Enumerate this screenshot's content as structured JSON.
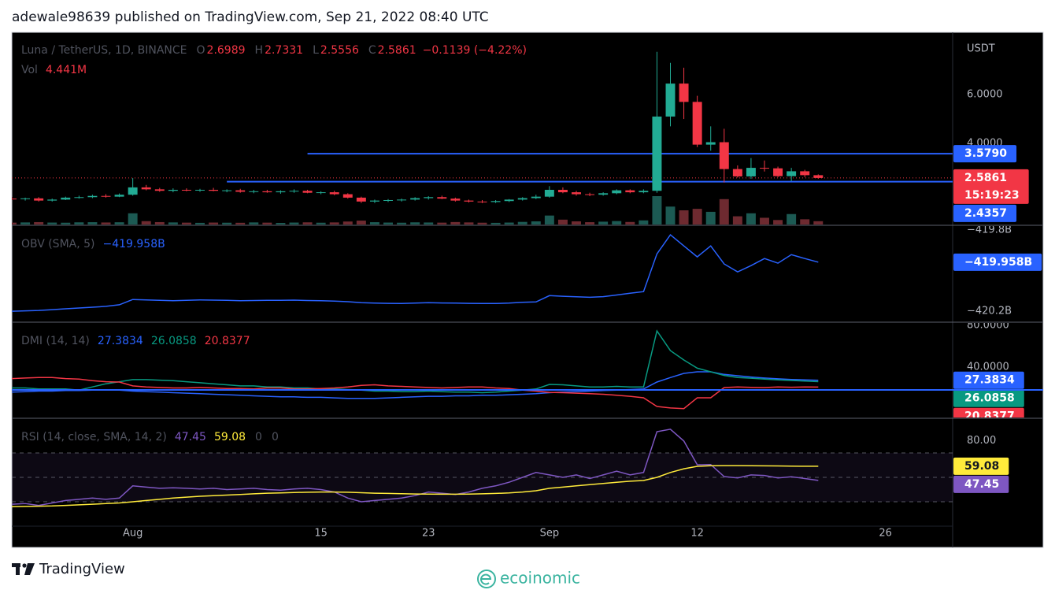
{
  "header": {
    "published": "adewale98639 published on TradingView.com, Sep 21, 2022 08:40 UTC"
  },
  "chart_data": [
    {
      "type": "candlestick",
      "title": "Luna / TetherUS, 1D, BINANCE",
      "ohlc_letters": [
        "O",
        "H",
        "L",
        "C"
      ],
      "change_text": "−0.1139 (−4.22%)",
      "axis_unit": "USDT",
      "countdown": "15:19:23",
      "x": [
        "2022-07-23",
        "2022-07-24",
        "2022-07-25",
        "2022-07-26",
        "2022-07-27",
        "2022-07-28",
        "2022-07-29",
        "2022-07-30",
        "2022-07-31",
        "2022-08-01",
        "2022-08-02",
        "2022-08-03",
        "2022-08-04",
        "2022-08-05",
        "2022-08-06",
        "2022-08-07",
        "2022-08-08",
        "2022-08-09",
        "2022-08-10",
        "2022-08-11",
        "2022-08-12",
        "2022-08-13",
        "2022-08-14",
        "2022-08-15",
        "2022-08-16",
        "2022-08-17",
        "2022-08-18",
        "2022-08-19",
        "2022-08-20",
        "2022-08-21",
        "2022-08-22",
        "2022-08-23",
        "2022-08-24",
        "2022-08-25",
        "2022-08-26",
        "2022-08-27",
        "2022-08-28",
        "2022-08-29",
        "2022-08-30",
        "2022-08-31",
        "2022-09-01",
        "2022-09-02",
        "2022-09-03",
        "2022-09-04",
        "2022-09-05",
        "2022-09-06",
        "2022-09-07",
        "2022-09-08",
        "2022-09-09",
        "2022-09-10",
        "2022-09-11",
        "2022-09-12",
        "2022-09-13",
        "2022-09-14",
        "2022-09-15",
        "2022-09-16",
        "2022-09-17",
        "2022-09-18",
        "2022-09-19",
        "2022-09-20",
        "2022-09-21"
      ],
      "open": [
        1.74,
        1.72,
        1.75,
        1.66,
        1.7,
        1.78,
        1.8,
        1.85,
        1.82,
        1.9,
        2.2,
        2.12,
        2.06,
        2.1,
        2.08,
        2.1,
        2.06,
        2.08,
        2.02,
        2.04,
        2.0,
        2.04,
        2.06,
        1.98,
        2.0,
        1.92,
        1.78,
        1.62,
        1.66,
        1.68,
        1.7,
        1.76,
        1.8,
        1.74,
        1.66,
        1.62,
        1.6,
        1.64,
        1.7,
        1.76,
        1.82,
        2.1,
        2.0,
        1.92,
        1.9,
        1.96,
        2.08,
        2.0,
        2.06,
        5.1,
        6.45,
        5.7,
        3.95,
        4.05,
        2.95,
        2.65,
        3.0,
        2.98,
        2.66,
        2.86,
        2.6989
      ],
      "high": [
        1.8,
        1.78,
        1.8,
        1.74,
        1.82,
        1.86,
        1.9,
        1.92,
        1.95,
        2.58,
        2.3,
        2.18,
        2.16,
        2.16,
        2.14,
        2.18,
        2.12,
        2.14,
        2.1,
        2.1,
        2.08,
        2.12,
        2.1,
        2.04,
        2.06,
        1.96,
        1.82,
        1.7,
        1.72,
        1.74,
        1.8,
        1.84,
        1.86,
        1.78,
        1.7,
        1.68,
        1.68,
        1.72,
        1.8,
        1.9,
        2.25,
        2.2,
        2.06,
        1.98,
        2.0,
        2.12,
        2.12,
        2.12,
        7.75,
        7.3,
        7.1,
        5.95,
        4.7,
        4.6,
        3.1,
        3.4,
        3.3,
        3.05,
        3.0,
        2.92,
        2.7331
      ],
      "low": [
        1.68,
        1.66,
        1.62,
        1.62,
        1.68,
        1.74,
        1.76,
        1.78,
        1.8,
        1.86,
        2.08,
        2.02,
        2.0,
        2.04,
        2.02,
        2.04,
        2.0,
        1.98,
        1.96,
        1.98,
        1.94,
        1.98,
        1.96,
        1.92,
        1.88,
        1.74,
        1.56,
        1.56,
        1.6,
        1.62,
        1.66,
        1.7,
        1.72,
        1.62,
        1.58,
        1.56,
        1.56,
        1.6,
        1.66,
        1.72,
        1.78,
        1.96,
        1.86,
        1.84,
        1.86,
        1.92,
        1.96,
        1.96,
        1.98,
        4.7,
        5.0,
        3.85,
        3.7,
        2.4,
        2.6,
        2.55,
        2.85,
        2.62,
        2.45,
        2.62,
        2.5556
      ],
      "close": [
        1.72,
        1.75,
        1.66,
        1.7,
        1.78,
        1.8,
        1.85,
        1.82,
        1.9,
        2.2,
        2.12,
        2.06,
        2.1,
        2.08,
        2.1,
        2.06,
        2.08,
        2.02,
        2.04,
        2.0,
        2.04,
        2.06,
        1.98,
        2.0,
        1.92,
        1.78,
        1.62,
        1.66,
        1.68,
        1.7,
        1.76,
        1.8,
        1.74,
        1.66,
        1.62,
        1.6,
        1.64,
        1.7,
        1.76,
        1.82,
        2.1,
        2.0,
        1.92,
        1.9,
        1.96,
        2.08,
        2.0,
        2.06,
        5.1,
        6.45,
        5.7,
        3.95,
        4.05,
        2.95,
        2.65,
        3.0,
        2.98,
        2.66,
        2.86,
        2.7,
        2.5861
      ],
      "up_color": "#22ab94",
      "down_color": "#f23645",
      "volume": {
        "name": "Vol",
        "values": [
          2.5,
          2.8,
          3.2,
          2.6,
          2.4,
          2.9,
          3.1,
          2.7,
          3.0,
          15,
          4.5,
          3.2,
          2.8,
          2.5,
          2.2,
          2.6,
          2.4,
          2.3,
          2.8,
          2.5,
          2.1,
          2.6,
          2.9,
          2.4,
          2.8,
          4.0,
          5.2,
          3.1,
          2.6,
          2.4,
          2.9,
          2.7,
          2.5,
          3.3,
          2.8,
          2.4,
          2.2,
          2.6,
          3.5,
          4.2,
          12,
          6.5,
          4.2,
          3.1,
          3.8,
          4.6,
          3.4,
          5.5,
          38,
          24,
          19,
          21,
          17,
          34,
          11,
          15,
          9,
          6,
          14,
          7,
          4.441
        ],
        "last_label": "4.441M",
        "up_color": "#1c5a53",
        "down_color": "#6e2a30"
      },
      "ylim": [
        0.68,
        8.55
      ],
      "yticks": [
        {
          "value": 6,
          "label": "6.0000"
        },
        {
          "value": 4,
          "label": "4.0000"
        }
      ],
      "xlim": [
        "2022-07-23",
        "2022-10-01"
      ],
      "xticks": [
        {
          "value": "2022-08-01",
          "label": "Aug"
        },
        {
          "value": "2022-08-15",
          "label": "15"
        },
        {
          "value": "2022-08-23",
          "label": "23"
        },
        {
          "value": "2022-09-01",
          "label": "Sep"
        },
        {
          "value": "2022-09-12",
          "label": "12"
        },
        {
          "value": "2022-09-26",
          "label": "26"
        }
      ],
      "hlines": [
        {
          "value": 3.579,
          "label": "3.5790",
          "start": "2022-08-14",
          "color": "#2962ff"
        },
        {
          "value": 2.4357,
          "label": "2.4357",
          "start": "2022-08-08",
          "color": "#2962ff"
        }
      ]
    },
    {
      "type": "line",
      "title": "OBV (SMA, 5)",
      "last_label": "−419.958B",
      "series": [
        {
          "color": "#2962ff",
          "values": [
            -420.2,
            -420.198,
            -420.196,
            -420.192,
            -420.188,
            -420.184,
            -420.18,
            -420.176,
            -420.168,
            -420.142,
            -420.144,
            -420.146,
            -420.148,
            -420.146,
            -420.144,
            -420.145,
            -420.146,
            -420.148,
            -420.147,
            -420.146,
            -420.146,
            -420.145,
            -420.147,
            -420.148,
            -420.15,
            -420.153,
            -420.158,
            -420.16,
            -420.161,
            -420.162,
            -420.16,
            -420.158,
            -420.159,
            -420.16,
            -420.161,
            -420.162,
            -420.162,
            -420.16,
            -420.156,
            -420.154,
            -420.123,
            -420.126,
            -420.129,
            -420.131,
            -420.128,
            -420.12,
            -420.111,
            -420.103,
            -419.917,
            -419.823,
            -419.878,
            -419.932,
            -419.878,
            -419.967,
            -420.006,
            -419.975,
            -419.94,
            -419.963,
            -419.921,
            -419.94,
            -419.958
          ]
        }
      ],
      "ylim": [
        -420.25,
        -419.78
      ],
      "yticks": [
        {
          "value": -419.8,
          "label": "−419.8B"
        },
        {
          "value": -420.2,
          "label": "−420.2B"
        }
      ]
    },
    {
      "type": "line",
      "title": "DMI (14, 14)",
      "series": [
        {
          "color": "#2962ff",
          "values": [
            16,
            16.5,
            17,
            17,
            17.5,
            17.5,
            18,
            18,
            18,
            17,
            16.5,
            16,
            15.5,
            15,
            14.5,
            14,
            13.5,
            13,
            12.5,
            12,
            11.5,
            11.5,
            11,
            11,
            10.5,
            10,
            10,
            10,
            10.5,
            11,
            11.5,
            12,
            12,
            12.5,
            12.5,
            13,
            13,
            13.5,
            14,
            14.5,
            15.5,
            16,
            16.5,
            17,
            17.5,
            18,
            18.5,
            19,
            25.7,
            30,
            34,
            35.5,
            35.5,
            33,
            31.7,
            30.5,
            29.5,
            28.8,
            28.2,
            27.8,
            27.3834
          ]
        },
        {
          "color": "#089981",
          "values": [
            20,
            20,
            19,
            19,
            19,
            18,
            21,
            24,
            26,
            28,
            28,
            27.5,
            27,
            26,
            25,
            24,
            23,
            22,
            22,
            21,
            21,
            20,
            20,
            19,
            19,
            18.5,
            18,
            17,
            17,
            16.5,
            16.5,
            17,
            16.5,
            16,
            16,
            15.5,
            16,
            17,
            18,
            19,
            23.4,
            23,
            22,
            21,
            21,
            21.5,
            21,
            21,
            74.7,
            55.8,
            46.8,
            39,
            35.5,
            32,
            30,
            29.4,
            28.5,
            27.8,
            27.2,
            26.6,
            26.0858
          ]
        },
        {
          "color": "#f23645",
          "values": [
            29,
            29.5,
            30,
            30,
            29,
            28.5,
            27,
            26,
            25.7,
            22,
            21,
            20.5,
            20,
            20,
            20.5,
            20,
            19.5,
            19.5,
            19,
            20,
            20,
            19,
            19,
            19.5,
            20,
            21,
            22.5,
            23,
            22,
            21.5,
            21,
            20.5,
            20,
            20.5,
            21,
            21,
            20,
            19.5,
            18,
            17,
            15.8,
            15.5,
            15,
            14.5,
            14,
            13,
            12,
            10.6,
            2.3,
            0.8,
            0.2,
            10.6,
            10.6,
            20.4,
            21,
            20.6,
            20.4,
            21,
            20.7,
            21,
            20.8377
          ]
        }
      ],
      "hlines": [
        {
          "value": 18.1,
          "color": "#2962ff"
        }
      ],
      "ylim": [
        -8.3,
        82.3
      ],
      "yticks": [
        {
          "value": 80,
          "label": "80.0000"
        },
        {
          "value": 40,
          "label": "40.0000"
        }
      ]
    },
    {
      "type": "line",
      "title": "RSI (14, close, SMA, 14, 2)",
      "extra_labels": [
        "0",
        "0"
      ],
      "series": [
        {
          "color": "#7e57c2",
          "values": [
            28,
            28.5,
            27,
            29,
            31,
            32,
            33,
            32,
            33,
            43,
            42,
            41,
            41.5,
            41,
            40.5,
            41,
            40,
            40.5,
            41,
            40,
            39.5,
            40.5,
            41,
            40,
            38,
            33,
            30,
            31,
            32,
            33,
            35,
            38,
            37,
            36,
            38,
            41,
            43,
            46,
            50,
            54,
            52,
            50,
            52,
            49,
            52,
            55,
            52,
            54,
            87.4,
            89.4,
            79.7,
            60.3,
            60.5,
            50.6,
            49.5,
            52,
            51.5,
            49.5,
            50.5,
            49,
            47.45
          ]
        },
        {
          "color": "#ffeb3b",
          "values": [
            26,
            26.2,
            26.4,
            26.6,
            27,
            27.5,
            28,
            28.5,
            29,
            30,
            31,
            32,
            33,
            33.8,
            34.5,
            35,
            35.5,
            36,
            36.5,
            37,
            37.3,
            37.6,
            37.8,
            38,
            38,
            37.8,
            37.4,
            37,
            36.8,
            36.6,
            36.4,
            36.3,
            36.2,
            36.2,
            36.3,
            36.5,
            36.8,
            37.2,
            38,
            39,
            41,
            42,
            43,
            44,
            45,
            46,
            46.8,
            47.4,
            50,
            54,
            57,
            59,
            59.5,
            59.6,
            59.6,
            59.5,
            59.4,
            59.3,
            59.2,
            59.1,
            59.08
          ]
        }
      ],
      "bands": [
        70,
        50,
        30
      ],
      "band_fill": "#7e57c2",
      "ylim": [
        10,
        97.7
      ],
      "yticks": [
        {
          "value": 80,
          "label": "80.00"
        }
      ]
    }
  ],
  "footer": {
    "brand": "TradingView",
    "watermark": "ecoinomic"
  }
}
